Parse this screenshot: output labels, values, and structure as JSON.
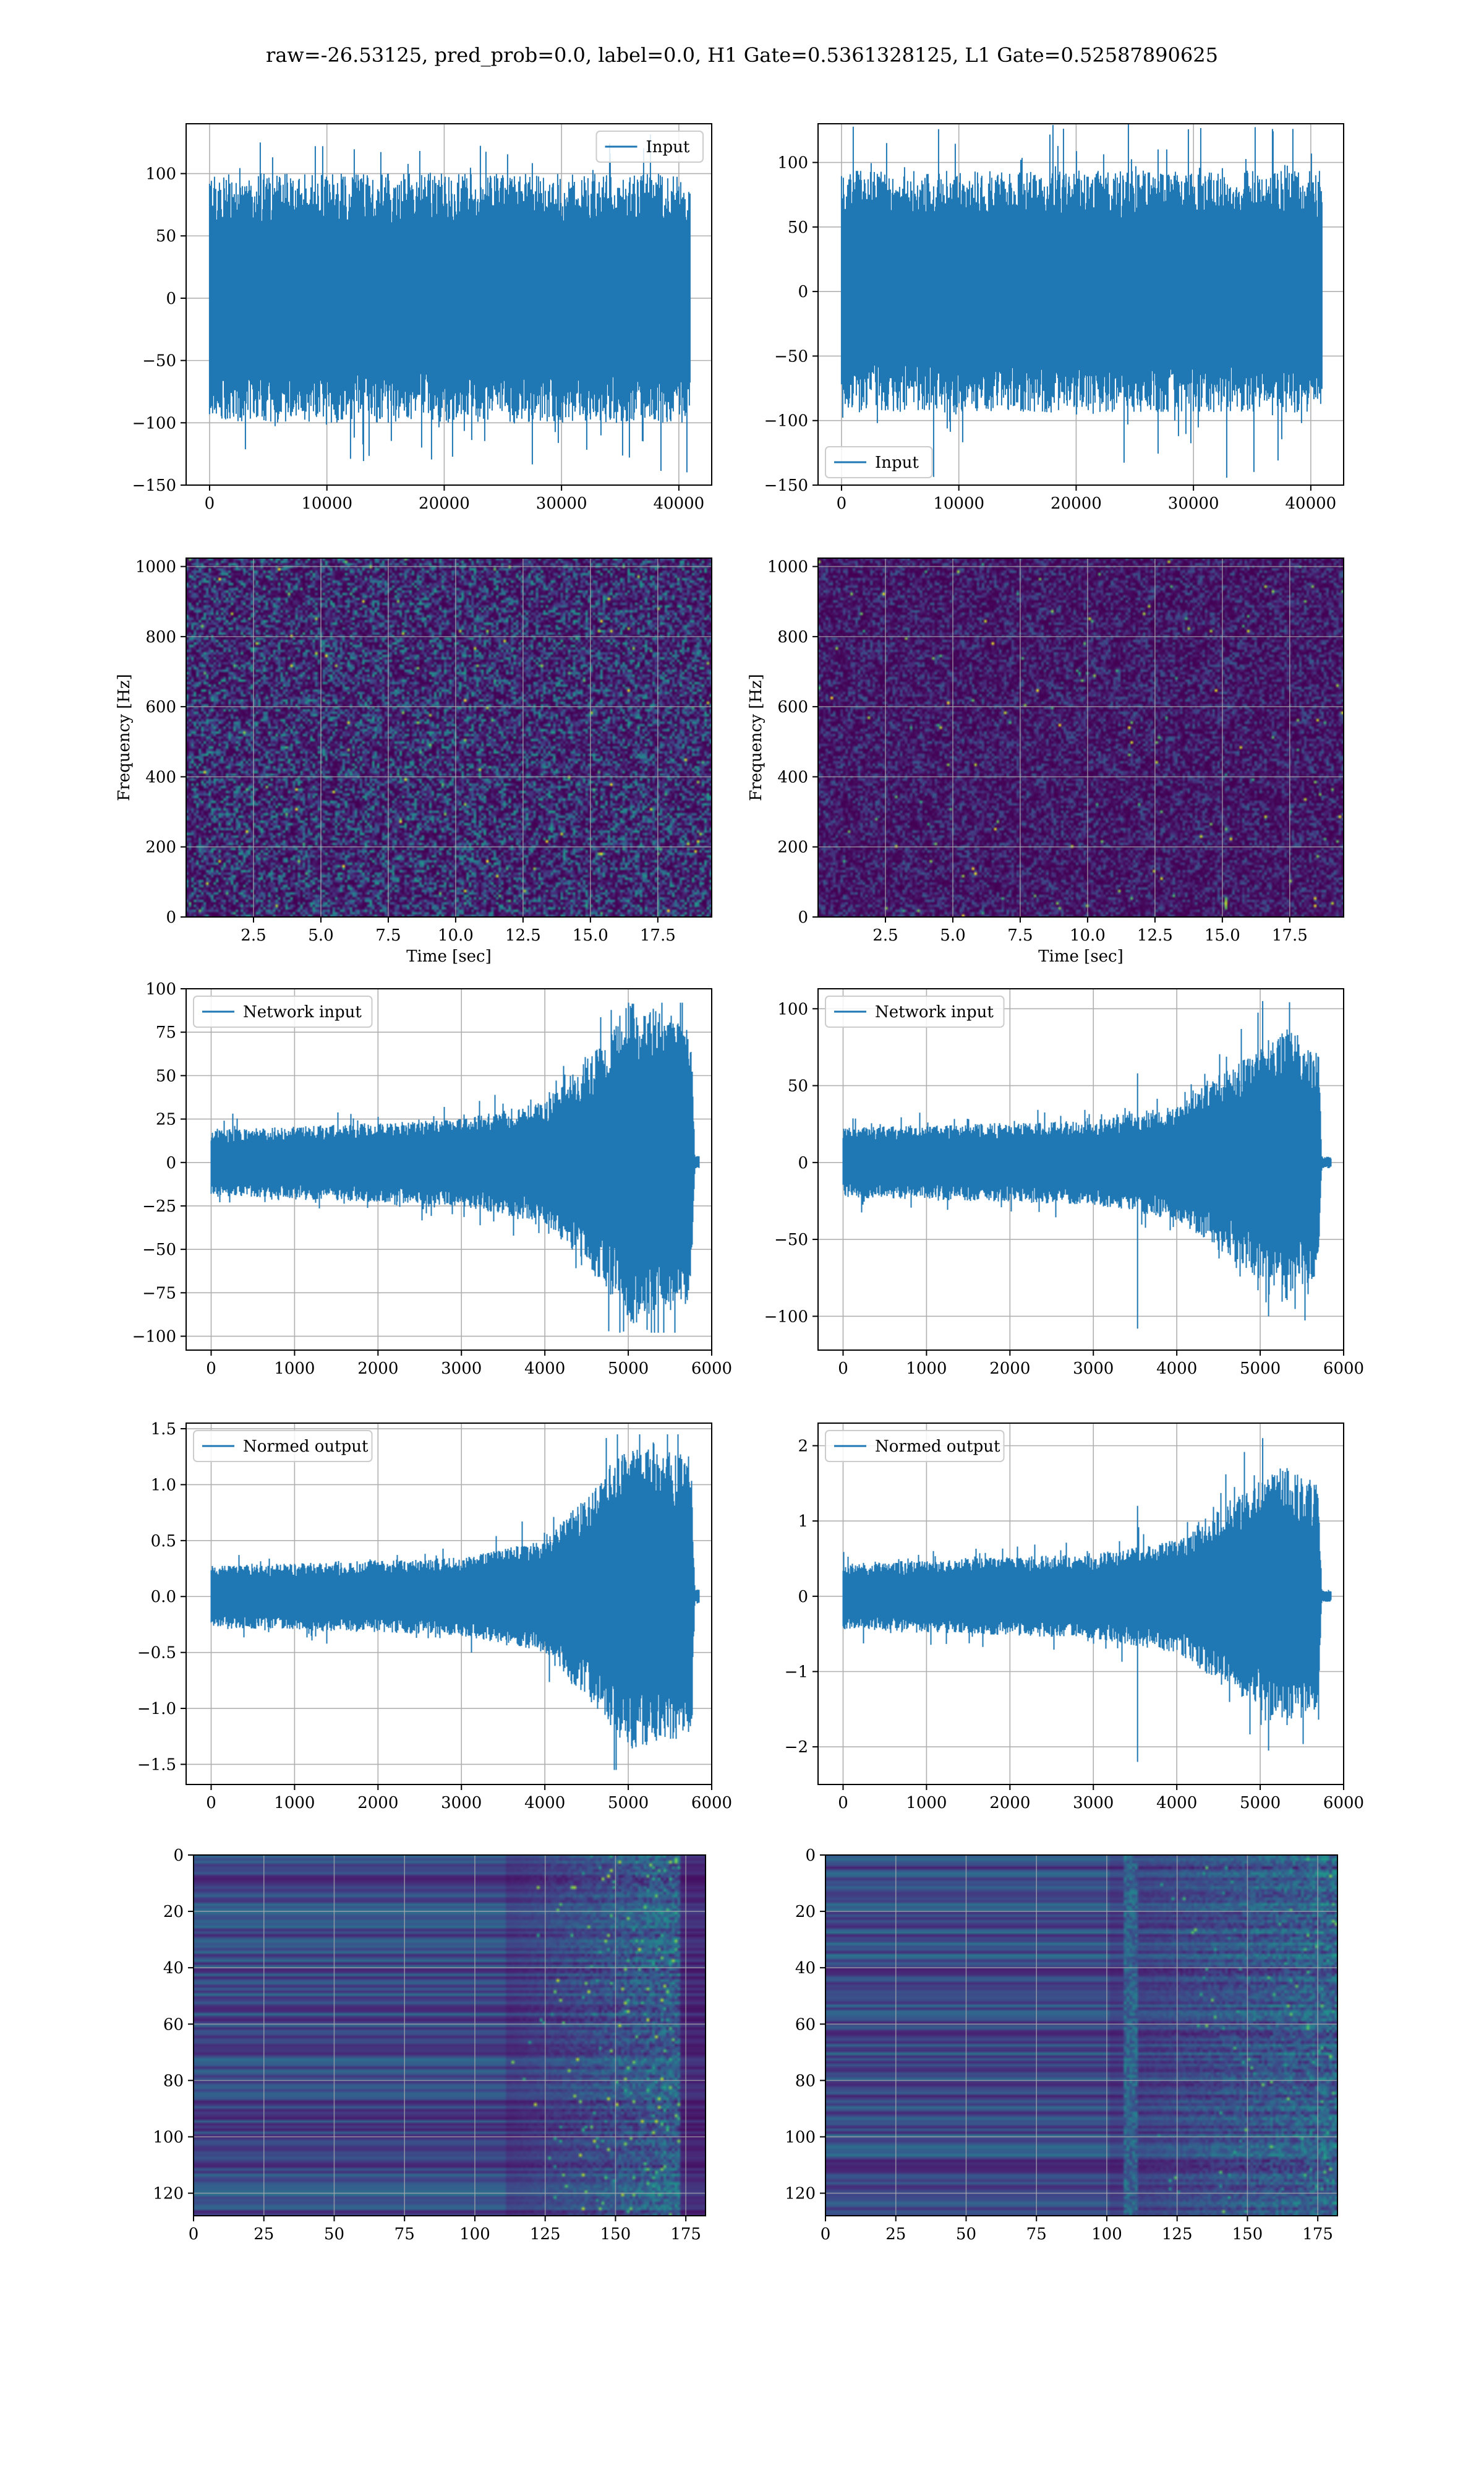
{
  "figure": {
    "suptitle": "raw=-26.53125, pred_prob=0.0, label=0.0, H1 Gate=0.5361328125, L1 Gate=0.52587890625",
    "colors": {
      "line": "#1f77b4",
      "grid": "#b0b0b0",
      "viridis_low": "#440154",
      "viridis_high": "#fde725"
    }
  },
  "chart_data": [
    {
      "id": "h1_input",
      "type": "line",
      "series": [
        {
          "name": "Input"
        }
      ],
      "legend": "upper right",
      "xlim": [
        -2000,
        42800
      ],
      "ylim": [
        -150,
        140
      ],
      "xticks": [
        0,
        10000,
        20000,
        30000,
        40000
      ],
      "xticklabels": [
        "0",
        "10000",
        "20000",
        "30000",
        "40000"
      ],
      "yticks": [
        -150,
        -100,
        -50,
        0,
        50,
        100
      ],
      "yticklabels": [
        "−150",
        "−100",
        "−50",
        "0",
        "50",
        "100"
      ],
      "n_points": 40960,
      "envelope_typical": [
        -80,
        80
      ],
      "peak_max": 135,
      "peak_min": -140,
      "grid": true
    },
    {
      "id": "l1_input",
      "type": "line",
      "series": [
        {
          "name": "Input"
        }
      ],
      "legend": "lower left",
      "xlim": [
        -2000,
        42800
      ],
      "ylim": [
        -150,
        130
      ],
      "xticks": [
        0,
        10000,
        20000,
        30000,
        40000
      ],
      "xticklabels": [
        "0",
        "10000",
        "20000",
        "30000",
        "40000"
      ],
      "yticks": [
        -150,
        -100,
        -50,
        0,
        50,
        100
      ],
      "yticklabels": [
        "−150",
        "−100",
        "−50",
        "0",
        "50",
        "100"
      ],
      "n_points": 40960,
      "envelope_typical": [
        -75,
        75
      ],
      "peak_max": 130,
      "peak_min": -150,
      "grid": true
    },
    {
      "id": "h1_spectrogram",
      "type": "heatmap",
      "colormap": "viridis",
      "xlabel": "Time [sec]",
      "ylabel": "Frequency [Hz]",
      "xlim": [
        0,
        19.5
      ],
      "ylim": [
        0,
        1024
      ],
      "xticks": [
        2.5,
        5.0,
        7.5,
        10.0,
        12.5,
        15.0,
        17.5
      ],
      "xticklabels": [
        "2.5",
        "5.0",
        "7.5",
        "10.0",
        "12.5",
        "15.0",
        "17.5"
      ],
      "yticks": [
        0,
        200,
        400,
        600,
        800,
        1000
      ],
      "yticklabels": [
        "0",
        "200",
        "400",
        "600",
        "800",
        "1000"
      ],
      "grid": true
    },
    {
      "id": "l1_spectrogram",
      "type": "heatmap",
      "colormap": "viridis",
      "xlabel": "Time [sec]",
      "ylabel": "Frequency [Hz]",
      "xlim": [
        0,
        19.5
      ],
      "ylim": [
        0,
        1024
      ],
      "xticks": [
        2.5,
        5.0,
        7.5,
        10.0,
        12.5,
        15.0,
        17.5
      ],
      "xticklabels": [
        "2.5",
        "5.0",
        "7.5",
        "10.0",
        "12.5",
        "15.0",
        "17.5"
      ],
      "yticks": [
        0,
        200,
        400,
        600,
        800,
        1000
      ],
      "yticklabels": [
        "0",
        "200",
        "400",
        "600",
        "800",
        "1000"
      ],
      "hot_spot": {
        "x": 15.1,
        "y": 40
      },
      "grid": true
    },
    {
      "id": "h1_network_input",
      "type": "line",
      "series": [
        {
          "name": "Network input"
        }
      ],
      "legend": "upper left",
      "xlim": [
        -300,
        6000
      ],
      "ylim": [
        -108,
        100
      ],
      "xticks": [
        0,
        1000,
        2000,
        3000,
        4000,
        5000,
        6000
      ],
      "xticklabels": [
        "0",
        "1000",
        "2000",
        "3000",
        "4000",
        "5000",
        "6000"
      ],
      "yticks": [
        -100,
        -75,
        -50,
        -25,
        0,
        25,
        50,
        75,
        100
      ],
      "yticklabels": [
        "−100",
        "−75",
        "−50",
        "−25",
        "0",
        "25",
        "50",
        "75",
        "100"
      ],
      "n_points": 5850,
      "envelope": [
        [
          0,
          15
        ],
        [
          3000,
          20
        ],
        [
          4000,
          28
        ],
        [
          4700,
          55
        ],
        [
          5000,
          75
        ],
        [
          5760,
          65
        ],
        [
          5800,
          3
        ],
        [
          5850,
          3
        ]
      ],
      "peak_max": 92,
      "peak_min": -98,
      "grid": true
    },
    {
      "id": "l1_network_input",
      "type": "line",
      "series": [
        {
          "name": "Network input"
        }
      ],
      "legend": "upper left",
      "xlim": [
        -300,
        6000
      ],
      "ylim": [
        -122,
        113
      ],
      "xticks": [
        0,
        1000,
        2000,
        3000,
        4000,
        5000,
        6000
      ],
      "xticklabels": [
        "0",
        "1000",
        "2000",
        "3000",
        "4000",
        "5000",
        "6000"
      ],
      "yticks": [
        -100,
        -50,
        0,
        50,
        100
      ],
      "yticklabels": [
        "−100",
        "−50",
        "0",
        "50",
        "100"
      ],
      "n_points": 5850,
      "envelope": [
        [
          0,
          18
        ],
        [
          3000,
          22
        ],
        [
          4000,
          30
        ],
        [
          4800,
          55
        ],
        [
          5300,
          70
        ],
        [
          5700,
          60
        ],
        [
          5740,
          3
        ],
        [
          5850,
          3
        ]
      ],
      "spikes": [
        [
          3530,
          -108
        ],
        [
          3530,
          58
        ],
        [
          5030,
          105
        ],
        [
          5100,
          -100
        ]
      ],
      "grid": true
    },
    {
      "id": "h1_normed_output",
      "type": "line",
      "series": [
        {
          "name": "Normed output"
        }
      ],
      "legend": "upper left",
      "xlim": [
        -300,
        6000
      ],
      "ylim": [
        -1.68,
        1.55
      ],
      "xticks": [
        0,
        1000,
        2000,
        3000,
        4000,
        5000,
        6000
      ],
      "xticklabels": [
        "0",
        "1000",
        "2000",
        "3000",
        "4000",
        "5000",
        "6000"
      ],
      "yticks": [
        -1.5,
        -1.0,
        -0.5,
        0.0,
        0.5,
        1.0,
        1.5
      ],
      "yticklabels": [
        "−1.5",
        "−1.0",
        "−0.5",
        "0.0",
        "0.5",
        "1.0",
        "1.5"
      ],
      "n_points": 5850,
      "envelope": [
        [
          0,
          0.22
        ],
        [
          3000,
          0.28
        ],
        [
          4000,
          0.4
        ],
        [
          4700,
          0.85
        ],
        [
          5000,
          1.1
        ],
        [
          5760,
          1.0
        ],
        [
          5800,
          0.05
        ],
        [
          5850,
          0.05
        ]
      ],
      "peak_max": 1.45,
      "peak_min": -1.55,
      "grid": true
    },
    {
      "id": "l1_normed_output",
      "type": "line",
      "series": [
        {
          "name": "Normed output"
        }
      ],
      "legend": "upper left",
      "xlim": [
        -300,
        6000
      ],
      "ylim": [
        -2.5,
        2.3
      ],
      "xticks": [
        0,
        1000,
        2000,
        3000,
        4000,
        5000,
        6000
      ],
      "xticklabels": [
        "0",
        "1000",
        "2000",
        "3000",
        "4000",
        "5000",
        "6000"
      ],
      "yticks": [
        -2,
        -1,
        0,
        1,
        2
      ],
      "yticklabels": [
        "−2",
        "−1",
        "0",
        "1",
        "2"
      ],
      "n_points": 5850,
      "envelope": [
        [
          0,
          0.35
        ],
        [
          3000,
          0.45
        ],
        [
          4000,
          0.6
        ],
        [
          4800,
          1.1
        ],
        [
          5300,
          1.4
        ],
        [
          5700,
          1.2
        ],
        [
          5740,
          0.06
        ],
        [
          5850,
          0.06
        ]
      ],
      "spikes": [
        [
          3530,
          -2.2
        ],
        [
          3530,
          1.2
        ],
        [
          5030,
          2.1
        ],
        [
          5100,
          -2.05
        ]
      ],
      "grid": true
    },
    {
      "id": "h1_feature_map",
      "type": "heatmap",
      "colormap": "viridis",
      "xlim": [
        0,
        182
      ],
      "ylim": [
        128,
        0
      ],
      "xticks": [
        0,
        25,
        50,
        75,
        100,
        125,
        150,
        175
      ],
      "xticklabels": [
        "0",
        "25",
        "50",
        "75",
        "100",
        "125",
        "150",
        "175"
      ],
      "yticks": [
        0,
        20,
        40,
        60,
        80,
        100,
        120
      ],
      "yticklabels": [
        "0",
        "20",
        "40",
        "60",
        "80",
        "100",
        "120"
      ],
      "n_rows": 128,
      "n_cols": 182,
      "grid": true
    },
    {
      "id": "l1_feature_map",
      "type": "heatmap",
      "colormap": "viridis",
      "xlim": [
        0,
        182
      ],
      "ylim": [
        128,
        0
      ],
      "xticks": [
        0,
        25,
        50,
        75,
        100,
        125,
        150,
        175
      ],
      "xticklabels": [
        "0",
        "25",
        "50",
        "75",
        "100",
        "125",
        "150",
        "175"
      ],
      "yticks": [
        0,
        20,
        40,
        60,
        80,
        100,
        120
      ],
      "yticklabels": [
        "0",
        "20",
        "40",
        "60",
        "80",
        "100",
        "120"
      ],
      "n_rows": 128,
      "n_cols": 182,
      "grid": true
    }
  ]
}
